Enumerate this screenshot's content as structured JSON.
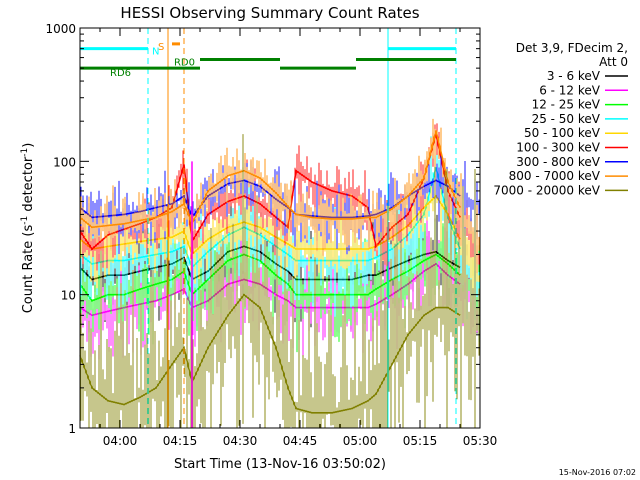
{
  "chart_data": {
    "type": "line",
    "title": "HESSI Observing Summary Count Rates",
    "xlabel": "Start Time (13-Nov-16 03:50:02)",
    "ylabel": "Count Rate (s⁻¹ detector⁻¹)",
    "ylabel_parts": {
      "base": "Count Rate (s",
      "exp1": "-1",
      "mid": " detector",
      "exp2": "-1",
      "end": ")"
    },
    "yscale": "log",
    "xlim": [
      "03:50",
      "05:30"
    ],
    "ylim": [
      1,
      1000
    ],
    "x_ticks": [
      "04:00",
      "04:15",
      "04:30",
      "04:45",
      "05:00",
      "05:15",
      "05:30"
    ],
    "y_ticks": [
      "1",
      "10",
      "100",
      "1000"
    ],
    "grid": false,
    "legend_position": "right",
    "legend_title": [
      "Det 3,9, FDecim 2,",
      "Att 0"
    ],
    "timestamp": "15-Nov-2016 07:02",
    "series": [
      {
        "name": "3 - 6 keV",
        "color": "#000000",
        "x": [
          "03:50",
          "03:53",
          "03:57",
          "04:01",
          "04:05",
          "04:09",
          "04:13",
          "04:16",
          "04:18",
          "04:22",
          "04:27",
          "04:31",
          "04:35",
          "04:39",
          "04:42",
          "04:44",
          "04:48",
          "04:53",
          "04:58",
          "05:02",
          "05:04",
          "05:08",
          "05:12",
          "05:16",
          "05:19",
          "05:22",
          "05:25"
        ],
        "y": [
          16,
          13,
          14,
          14,
          15,
          16,
          17,
          19,
          13,
          15,
          21,
          23,
          21,
          17,
          15,
          13,
          13,
          13,
          13,
          14,
          14,
          16,
          18,
          20,
          21,
          18,
          16
        ]
      },
      {
        "name": "6 - 12 keV",
        "color": "#ff00ff",
        "x": [
          "03:50",
          "03:53",
          "03:57",
          "04:01",
          "04:05",
          "04:09",
          "04:13",
          "04:16",
          "04:18",
          "04:22",
          "04:27",
          "04:31",
          "04:35",
          "04:39",
          "04:42",
          "04:44",
          "04:48",
          "04:53",
          "04:58",
          "05:02",
          "05:04",
          "05:08",
          "05:12",
          "05:16",
          "05:19",
          "05:22",
          "05:25"
        ],
        "y": [
          8,
          7,
          7.5,
          8,
          8.5,
          9,
          10,
          11,
          8,
          9,
          12,
          13,
          12,
          10,
          9,
          8,
          8,
          8,
          8,
          8,
          8.5,
          10,
          12,
          15,
          17,
          14,
          12
        ]
      },
      {
        "name": "12 - 25 keV",
        "color": "#00ff00",
        "x": [
          "03:50",
          "03:53",
          "03:57",
          "04:01",
          "04:05",
          "04:09",
          "04:13",
          "04:16",
          "04:18",
          "04:22",
          "04:27",
          "04:31",
          "04:35",
          "04:39",
          "04:42",
          "04:44",
          "04:48",
          "04:53",
          "04:58",
          "05:02",
          "05:04",
          "05:08",
          "05:12",
          "05:16",
          "05:19",
          "05:22",
          "05:25"
        ],
        "y": [
          12,
          9,
          10,
          10,
          11,
          12,
          13,
          15,
          10,
          13,
          18,
          20,
          18,
          14,
          12,
          10,
          10,
          10,
          10,
          10,
          11,
          13,
          15,
          18,
          20,
          17,
          14
        ]
      },
      {
        "name": "25 - 50 keV",
        "color": "#00ffff",
        "x": [
          "03:50",
          "03:53",
          "03:57",
          "04:01",
          "04:05",
          "04:09",
          "04:13",
          "04:16",
          "04:18",
          "04:22",
          "04:27",
          "04:31",
          "04:35",
          "04:39",
          "04:42",
          "04:44",
          "04:48",
          "04:53",
          "04:58",
          "05:02",
          "05:04",
          "05:08",
          "05:12",
          "05:16",
          "05:19",
          "05:22",
          "05:25"
        ],
        "y": [
          20,
          17,
          18,
          18,
          19,
          20,
          21,
          23,
          16,
          21,
          28,
          32,
          28,
          23,
          20,
          18,
          18,
          18,
          18,
          18,
          19,
          22,
          28,
          40,
          90,
          38,
          22
        ]
      },
      {
        "name": "50 - 100 keV",
        "color": "#ffd700",
        "x": [
          "03:50",
          "03:53",
          "03:57",
          "04:01",
          "04:05",
          "04:09",
          "04:13",
          "04:16",
          "04:18",
          "04:22",
          "04:27",
          "04:31",
          "04:35",
          "04:39",
          "04:42",
          "04:44",
          "04:48",
          "04:53",
          "04:58",
          "05:02",
          "05:04",
          "05:08",
          "05:12",
          "05:16",
          "05:19",
          "05:22",
          "05:25"
        ],
        "y": [
          26,
          22,
          23,
          24,
          25,
          26,
          27,
          30,
          20,
          26,
          32,
          35,
          32,
          27,
          24,
          22,
          22,
          22,
          22,
          22,
          23,
          27,
          33,
          45,
          55,
          40,
          26
        ]
      },
      {
        "name": "100 - 300 keV",
        "color": "#ff0000",
        "x": [
          "03:50",
          "03:53",
          "03:57",
          "04:01",
          "04:05",
          "04:09",
          "04:13",
          "04:16",
          "04:18",
          "04:22",
          "04:27",
          "04:31",
          "04:35",
          "04:39",
          "04:42",
          "04:44",
          "04:48",
          "04:53",
          "04:58",
          "05:02",
          "05:04",
          "05:08",
          "05:12",
          "05:16",
          "05:19",
          "05:22",
          "05:25"
        ],
        "y": [
          30,
          22,
          28,
          31,
          34,
          38,
          45,
          95,
          25,
          40,
          50,
          55,
          48,
          38,
          32,
          85,
          70,
          60,
          55,
          45,
          23,
          32,
          40,
          75,
          160,
          60,
          38
        ]
      },
      {
        "name": "300 - 800 keV",
        "color": "#0000ff",
        "x": [
          "03:50",
          "03:53",
          "03:57",
          "04:01",
          "04:05",
          "04:09",
          "04:13",
          "04:16",
          "04:18",
          "04:22",
          "04:27",
          "04:31",
          "04:35",
          "04:39",
          "04:42",
          "04:44",
          "04:48",
          "04:53",
          "04:58",
          "05:02",
          "05:04",
          "05:08",
          "05:12",
          "05:16",
          "05:19",
          "05:22",
          "05:25"
        ],
        "y": [
          45,
          38,
          39,
          40,
          42,
          45,
          48,
          55,
          38,
          55,
          68,
          72,
          65,
          52,
          45,
          40,
          39,
          38,
          38,
          39,
          40,
          45,
          55,
          65,
          72,
          65,
          55
        ]
      },
      {
        "name": "800 - 7000 keV",
        "color": "#ff8c00",
        "x": [
          "03:50",
          "03:53",
          "03:57",
          "04:01",
          "04:05",
          "04:09",
          "04:13",
          "04:16",
          "04:18",
          "04:22",
          "04:27",
          "04:31",
          "04:35",
          "04:39",
          "04:42",
          "04:44",
          "04:48",
          "04:53",
          "04:58",
          "05:02",
          "05:04",
          "05:08",
          "05:12",
          "05:16",
          "05:19",
          "05:22",
          "05:25"
        ],
        "y": [
          38,
          32,
          33,
          34,
          36,
          38,
          42,
          48,
          34,
          60,
          78,
          85,
          75,
          58,
          46,
          40,
          38,
          37,
          37,
          38,
          38,
          44,
          55,
          75,
          170,
          70,
          45
        ]
      },
      {
        "name": "7000 - 20000 keV",
        "color": "#808000",
        "x": [
          "03:50",
          "03:53",
          "03:57",
          "04:01",
          "04:05",
          "04:09",
          "04:13",
          "04:16",
          "04:18",
          "04:22",
          "04:27",
          "04:31",
          "04:35",
          "04:39",
          "04:42",
          "04:44",
          "04:48",
          "04:53",
          "04:58",
          "05:02",
          "05:04",
          "05:08",
          "05:12",
          "05:16",
          "05:19",
          "05:22",
          "05:25"
        ],
        "y": [
          3.5,
          2,
          1.6,
          1.5,
          1.7,
          2,
          3,
          4,
          2.2,
          4,
          7,
          10,
          8,
          4,
          2,
          1.4,
          1.3,
          1.3,
          1.4,
          1.6,
          1.8,
          3,
          5,
          7,
          8,
          8,
          7
        ]
      }
    ],
    "vertical_lines": [
      {
        "time": "03:50",
        "color": "#00ffff",
        "style": "solid"
      },
      {
        "time": "04:07",
        "color": "#00ffff",
        "style": "dashed"
      },
      {
        "time": "04:12",
        "color": "#ff8c00",
        "style": "solid"
      },
      {
        "time": "04:16",
        "color": "#ff8c00",
        "style": "dashed"
      },
      {
        "time": "05:07",
        "color": "#00ffff",
        "style": "solid"
      },
      {
        "time": "05:24",
        "color": "#00ffff",
        "style": "dashed"
      }
    ],
    "spikes": [
      {
        "time": "04:18",
        "color": "#ff00ff",
        "from": 1,
        "to": 100
      }
    ],
    "bars": [
      {
        "label": "N",
        "color": "#00ffff",
        "segments": [
          [
            "03:50",
            "04:07"
          ],
          [
            "05:07",
            "05:24"
          ]
        ],
        "level": 700
      },
      {
        "label": "S",
        "color": "#ff8c00",
        "segments": [
          [
            "04:13",
            "04:15"
          ]
        ],
        "level": 760
      },
      {
        "label": "RD0",
        "color": "#008000",
        "segments": [
          [
            "04:20",
            "04:40"
          ],
          [
            "04:59",
            "05:24"
          ]
        ],
        "level": 580
      },
      {
        "label": "RD6",
        "color": "#008000",
        "segments": [
          [
            "03:50",
            "04:20"
          ],
          [
            "04:40",
            "04:59"
          ]
        ],
        "level": 500
      }
    ]
  }
}
